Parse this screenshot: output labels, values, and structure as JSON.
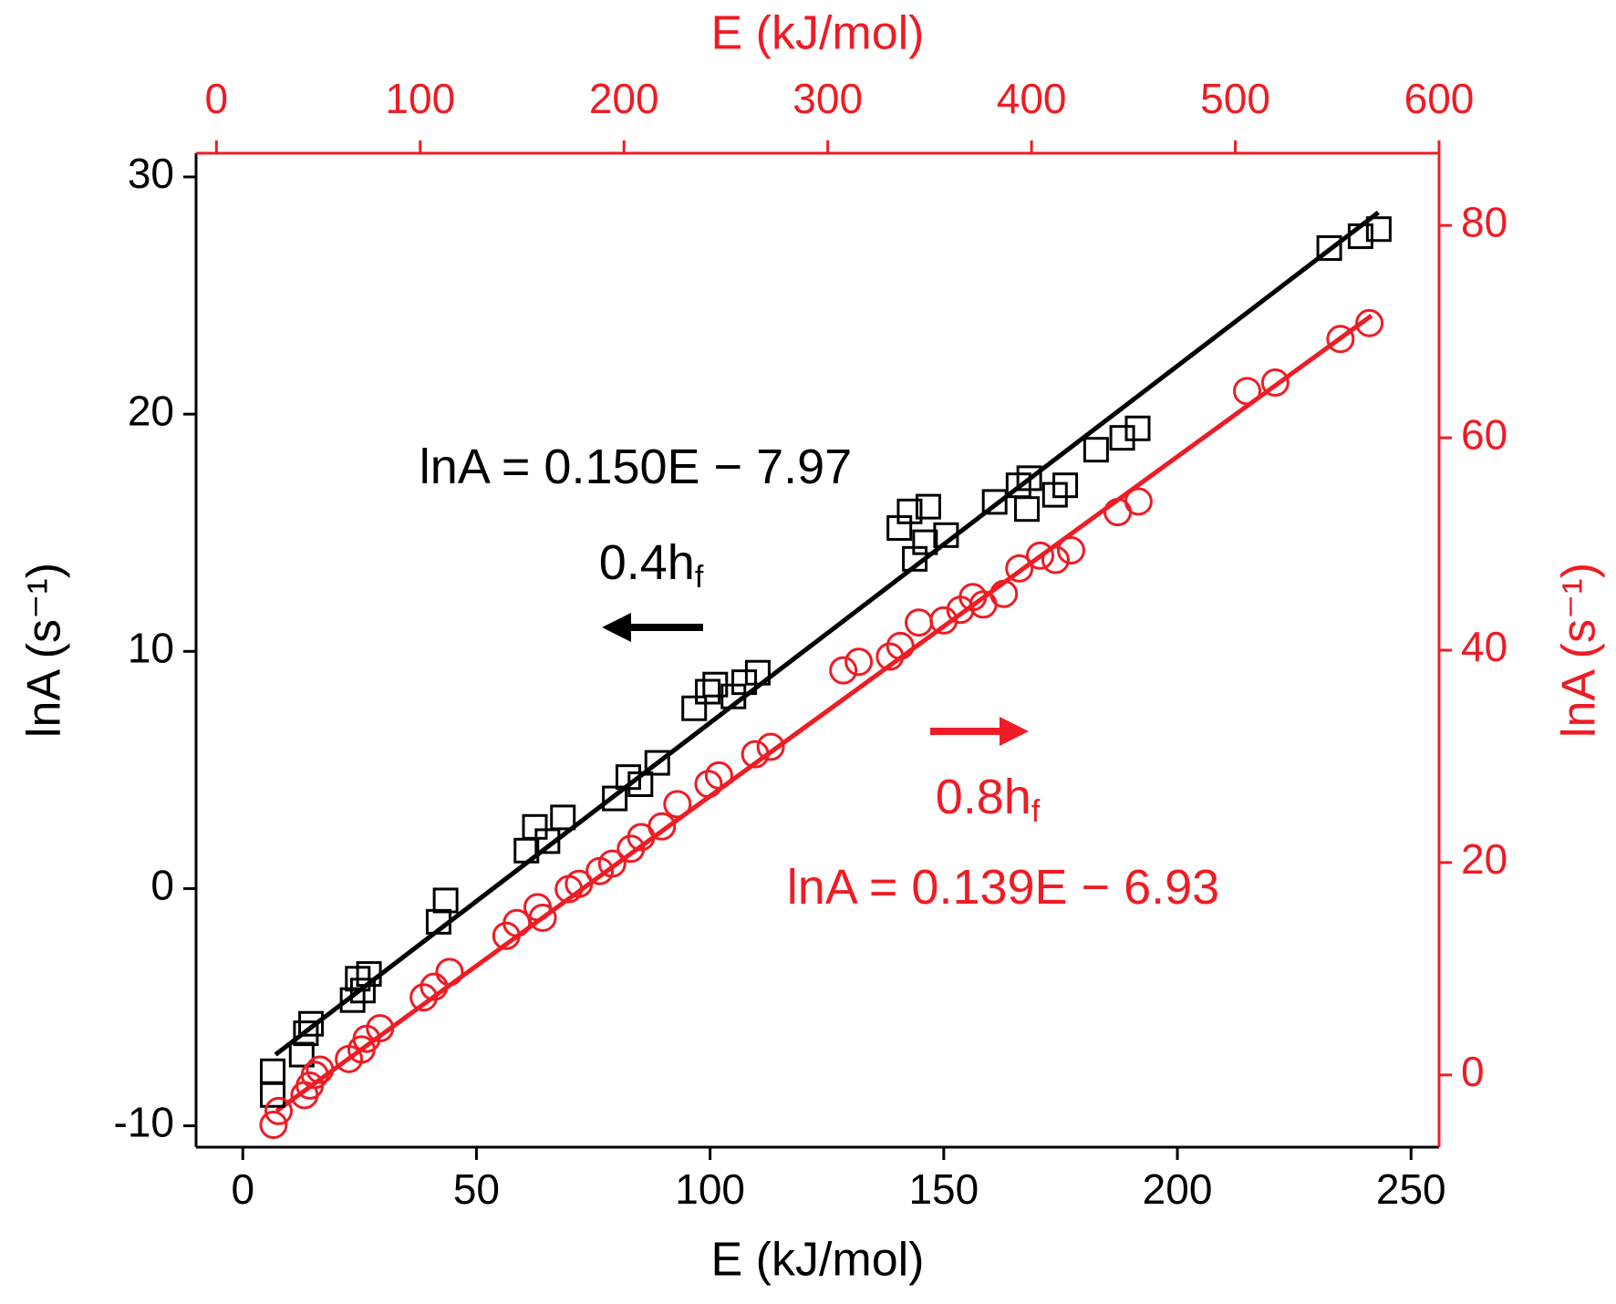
{
  "chart_data": {
    "type": "scatter",
    "xlabel": "E (kJ/mol)",
    "x2label": "E (kJ/mol)",
    "ylabel": "lnA (s⁻¹)",
    "y2label": "lnA (s⁻¹)",
    "xlim": [
      -10,
      256
    ],
    "xticks": [
      0,
      50,
      100,
      150,
      200,
      250
    ],
    "x2lim": [
      -10,
      600
    ],
    "x2ticks": [
      0,
      100,
      200,
      300,
      400,
      500,
      600
    ],
    "ylim": [
      -10.9,
      31
    ],
    "yticks": [
      -10,
      0,
      10,
      20,
      30
    ],
    "y2lim": [
      -6.8,
      86.8
    ],
    "y2ticks": [
      0,
      20,
      40,
      60,
      80
    ],
    "axis_color": "#000000",
    "axis2_color": "#ee1c24",
    "series": [
      {
        "marker": "square",
        "color": "#000000",
        "x": [
          6.4,
          6.4,
          12.6,
          13.5,
          14.6,
          23.5,
          24.6,
          27,
          25.7,
          41.9,
          43.4,
          60.7,
          62.5,
          65.2,
          68.5,
          79.6,
          82.5,
          85.1,
          88.7,
          96.6,
          99.5,
          101.1,
          105,
          107.3,
          110.2,
          140.5,
          142.7,
          146.7,
          143.8,
          146,
          150.5,
          160.9,
          166,
          168.3,
          167.8,
          173.8,
          176,
          182.6,
          188.2,
          191.5,
          232.5,
          239.2,
          243.1
        ],
        "values": [
          -8.7,
          -7.7,
          -7.0,
          -6.1,
          -5.7,
          -4.7,
          -3.8,
          -3.6,
          -4.3,
          -1.4,
          -0.5,
          1.6,
          2.6,
          2.0,
          3.0,
          3.8,
          4.7,
          4.4,
          5.3,
          7.6,
          8.3,
          8.6,
          8.1,
          8.7,
          9.1,
          15.2,
          15.9,
          16.1,
          13.9,
          14.6,
          14.9,
          16.3,
          17,
          17.3,
          16,
          16.6,
          17,
          18.5,
          19,
          19.4,
          27,
          27.5,
          27.8
        ]
      },
      {
        "marker": "circle",
        "color": "#ee1c24",
        "axis": "y2",
        "xaxis": "x2",
        "x": [
          28,
          30.5,
          43.2,
          45.8,
          48.3,
          50.8,
          65,
          71.2,
          73.7,
          80.3,
          101.7,
          106.8,
          114.4,
          142.3,
          147.4,
          157.6,
          160.1,
          172.9,
          177.9,
          188.1,
          194.2,
          203.4,
          208.4,
          218.6,
          226.2,
          241.5,
          246.6,
          264.4,
          272,
          307.6,
          315.2,
          330.5,
          335.6,
          344.7,
          356.9,
          365.1,
          371.2,
          376.3,
          386.4,
          394,
          404.2,
          411.8,
          419.4,
          442.3,
          452.5,
          505.8,
          519.6,
          551.6,
          565.8
        ],
        "values": [
          -4.7,
          -3.4,
          -1.9,
          -1,
          0,
          0.5,
          1.5,
          2.4,
          3.4,
          4.4,
          7.3,
          8.3,
          9.7,
          13.1,
          14.3,
          15.8,
          14.8,
          17.5,
          18,
          19.2,
          19.9,
          21.3,
          22.4,
          23.4,
          25.5,
          27.4,
          28.2,
          30.2,
          30.9,
          38.1,
          38.9,
          39.4,
          40.4,
          42.6,
          42.8,
          43.8,
          45,
          44.3,
          45.3,
          47.7,
          48.9,
          48.5,
          49.4,
          53,
          54,
          64.4,
          65.2,
          69.3,
          70.8
        ]
      }
    ],
    "fit_lines": [
      {
        "color": "#000000",
        "x": [
          7,
          243
        ],
        "values": [
          -7,
          28.5
        ]
      },
      {
        "color": "#ee1c24",
        "axis": "y2",
        "xaxis": "x2",
        "x": [
          29.5,
          566.8
        ],
        "values": [
          -3.4,
          71.5
        ]
      }
    ],
    "annotations": [
      {
        "text": "lnA = 0.150E − 7.97",
        "color": "#000000"
      },
      {
        "text": "0.4h",
        "sub": "f",
        "color": "#000000"
      },
      {
        "text": "0.8h",
        "sub": "f",
        "color": "#ee1c24"
      },
      {
        "text": "lnA = 0.139E − 6.93",
        "color": "#ee1c24"
      }
    ]
  }
}
